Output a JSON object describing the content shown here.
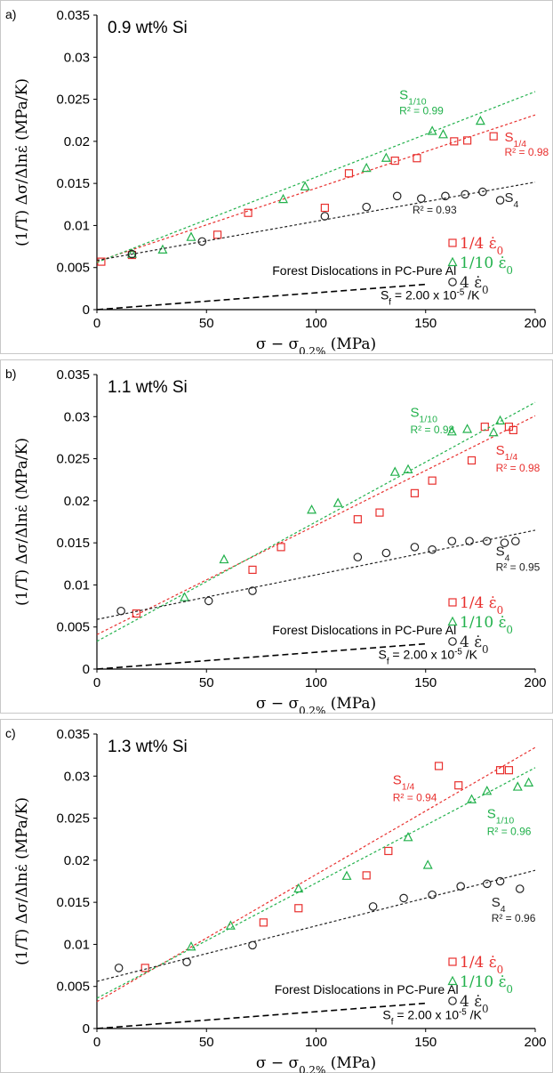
{
  "colors": {
    "s_quarter": "#e8302e",
    "s_tenth": "#22b14c",
    "s_four": "#222222"
  },
  "chart_data": [
    {
      "type": "scatter",
      "panel_tag": "a)",
      "composition": "0.9 wt% Si",
      "xlabel": "σ − σ0.2% (MPa)",
      "ylabel": "(1/T) Δσ/Δlnε̇ (MPa/K)",
      "xlim": [
        0,
        200
      ],
      "ylim": [
        0,
        0.035
      ],
      "xticks": [
        "0",
        "50",
        "100",
        "150",
        "200"
      ],
      "yticks": [
        "0",
        "0.005",
        "0.01",
        "0.015",
        "0.02",
        "0.025",
        "0.03",
        "0.035"
      ],
      "series": [
        {
          "name": "1/4 ε̇0",
          "label": "S1/4",
          "r2": "R² = 0.98",
          "marker": "square",
          "color_key": "s_quarter",
          "x": [
            2,
            16,
            55,
            69,
            104,
            115,
            136,
            146,
            163,
            169,
            181
          ],
          "y": [
            0.0057,
            0.0065,
            0.0089,
            0.0115,
            0.0121,
            0.0162,
            0.0177,
            0.018,
            0.02,
            0.0201,
            0.0206
          ],
          "fit": [
            0.00572,
            8.71e-05
          ],
          "label_pos": [
            186,
            0.02
          ],
          "r2_pos": [
            186,
            0.0183
          ]
        },
        {
          "name": "1/10 ε̇0",
          "label": "S1/10",
          "r2": "R² = 0.99",
          "marker": "triangle",
          "color_key": "s_tenth",
          "x": [
            16,
            30,
            43,
            85,
            95,
            123,
            132,
            153,
            158,
            175
          ],
          "y": [
            0.0066,
            0.0071,
            0.0086,
            0.0131,
            0.0146,
            0.0168,
            0.018,
            0.0212,
            0.0208,
            0.0224
          ],
          "fit": [
            0.00561,
            0.0001015
          ],
          "label_pos": [
            138,
            0.025
          ],
          "r2_pos": [
            138,
            0.0232
          ]
        },
        {
          "name": "4 ε̇0",
          "label": "S4",
          "r2": "R² = 0.93",
          "marker": "circle",
          "color_key": "s_four",
          "x": [
            16,
            48,
            104,
            123,
            137,
            148,
            159,
            168,
            176,
            184
          ],
          "y": [
            0.0066,
            0.0081,
            0.0111,
            0.0122,
            0.0135,
            0.0132,
            0.0135,
            0.0137,
            0.014,
            0.013
          ],
          "fit": [
            0.00585,
            4.65e-05
          ],
          "label_pos": [
            186,
            0.0128
          ],
          "r2_pos": [
            144,
            0.0114
          ]
        }
      ],
      "forest": {
        "label": "Forest Dislocations in PC-Pure Al",
        "sf": "Sf = 2.00 x 10-5 /K",
        "x": [
          0,
          150
        ],
        "y": [
          0,
          0.003
        ],
        "label_pos": [
          122,
          0.0041
        ],
        "sf_pos": [
          152,
          0.0012
        ]
      }
    },
    {
      "type": "scatter",
      "panel_tag": "b)",
      "composition": "1.1 wt% Si",
      "xlabel": "σ − σ0.2% (MPa)",
      "ylabel": "(1/T) Δσ/Δlnε̇ (MPa/K)",
      "xlim": [
        0,
        200
      ],
      "ylim": [
        0,
        0.035
      ],
      "xticks": [
        "0",
        "50",
        "100",
        "150",
        "200"
      ],
      "yticks": [
        "0",
        "0.005",
        "0.01",
        "0.015",
        "0.02",
        "0.025",
        "0.03",
        "0.035"
      ],
      "series": [
        {
          "name": "1/4 ε̇0",
          "label": "S1/4",
          "r2": "R² = 0.98",
          "marker": "square",
          "color_key": "s_quarter",
          "x": [
            18,
            71,
            84,
            119,
            129,
            145,
            153,
            171,
            177,
            188,
            190
          ],
          "y": [
            0.0066,
            0.0118,
            0.0145,
            0.0178,
            0.0186,
            0.0209,
            0.0224,
            0.0248,
            0.0288,
            0.0288,
            0.0284
          ],
          "fit": [
            0.0041,
            0.00013
          ],
          "label_pos": [
            182,
            0.0255
          ],
          "r2_pos": [
            182,
            0.0235
          ]
        },
        {
          "name": "1/10 ε̇0",
          "label": "S1/10",
          "r2": "R² = 0.98",
          "marker": "triangle",
          "color_key": "s_tenth",
          "x": [
            40,
            58,
            98,
            110,
            136,
            142,
            162,
            169,
            181,
            184
          ],
          "y": [
            0.0085,
            0.013,
            0.0189,
            0.0197,
            0.0234,
            0.0237,
            0.0282,
            0.0285,
            0.0281,
            0.0295
          ],
          "fit": [
            0.0033,
            0.000142
          ],
          "label_pos": [
            143,
            0.03
          ],
          "r2_pos": [
            143,
            0.028
          ]
        },
        {
          "name": "4 ε̇0",
          "label": "S4",
          "r2": "R² = 0.95",
          "marker": "circle",
          "color_key": "s_four",
          "x": [
            11,
            51,
            71,
            119,
            132,
            145,
            153,
            162,
            170,
            178,
            186,
            191
          ],
          "y": [
            0.0069,
            0.0081,
            0.0093,
            0.0133,
            0.0138,
            0.0145,
            0.0142,
            0.0152,
            0.0152,
            0.0152,
            0.015,
            0.0152
          ],
          "fit": [
            0.0059,
            5.3e-05
          ],
          "label_pos": [
            182,
            0.0135
          ],
          "r2_pos": [
            182,
            0.0117
          ]
        }
      ],
      "forest": {
        "label": "Forest Dislocations in PC-Pure Al",
        "sf": "Sf = 2.00 x 10-5 /K",
        "x": [
          0,
          150
        ],
        "y": [
          0,
          0.003
        ],
        "label_pos": [
          122,
          0.0041
        ],
        "sf_pos": [
          151,
          0.0012
        ]
      }
    },
    {
      "type": "scatter",
      "panel_tag": "c)",
      "composition": "1.3 wt% Si",
      "xlabel": "σ − σ0.2% (MPa)",
      "ylabel": "(1/T) Δσ/Δlnε̇ (MPa/K)",
      "xlim": [
        0,
        200
      ],
      "ylim": [
        0,
        0.035
      ],
      "xticks": [
        "0",
        "50",
        "100",
        "150",
        "200"
      ],
      "yticks": [
        "0",
        "0.005",
        "0.01",
        "0.015",
        "0.02",
        "0.025",
        "0.03",
        "0.035"
      ],
      "series": [
        {
          "name": "1/4 ε̇0",
          "label": "S1/4",
          "r2": "R² = 0.94",
          "marker": "square",
          "color_key": "s_quarter",
          "x": [
            22,
            76,
            92,
            123,
            133,
            156,
            165,
            184,
            188
          ],
          "y": [
            0.0072,
            0.0126,
            0.0143,
            0.0182,
            0.0211,
            0.0312,
            0.0289,
            0.0307,
            0.0307
          ],
          "fit": [
            0.0032,
            0.000151
          ],
          "label_pos": [
            135,
            0.029
          ],
          "r2_pos": [
            135,
            0.027
          ]
        },
        {
          "name": "1/10 ε̇0",
          "label": "S1/10",
          "r2": "R² = 0.96",
          "marker": "triangle",
          "color_key": "s_tenth",
          "x": [
            43,
            61,
            92,
            114,
            142,
            151,
            171,
            178,
            192,
            197
          ],
          "y": [
            0.0097,
            0.0122,
            0.0166,
            0.0181,
            0.0227,
            0.0194,
            0.0272,
            0.0282,
            0.0287,
            0.0292
          ],
          "fit": [
            0.0036,
            0.000137
          ],
          "label_pos": [
            178,
            0.025
          ],
          "r2_pos": [
            178,
            0.023
          ]
        },
        {
          "name": "4 ε̇0",
          "label": "S4",
          "r2": "R² = 0.96",
          "marker": "circle",
          "color_key": "s_four",
          "x": [
            10,
            41,
            71,
            126,
            140,
            153,
            166,
            178,
            184,
            193
          ],
          "y": [
            0.0072,
            0.0079,
            0.0099,
            0.0145,
            0.0155,
            0.0159,
            0.0169,
            0.0172,
            0.0175,
            0.0166
          ],
          "fit": [
            0.0056,
            6.6e-05
          ],
          "label_pos": [
            180,
            0.0145
          ],
          "r2_pos": [
            180,
            0.0127
          ]
        }
      ],
      "forest": {
        "label": "Forest Dislocations in PC-Pure Al",
        "sf": "Sf = 2.00 x 10-5 /K",
        "x": [
          0,
          150
        ],
        "y": [
          0,
          0.003
        ],
        "label_pos": [
          123,
          0.0041
        ],
        "sf_pos": [
          153,
          0.0011
        ]
      }
    }
  ]
}
